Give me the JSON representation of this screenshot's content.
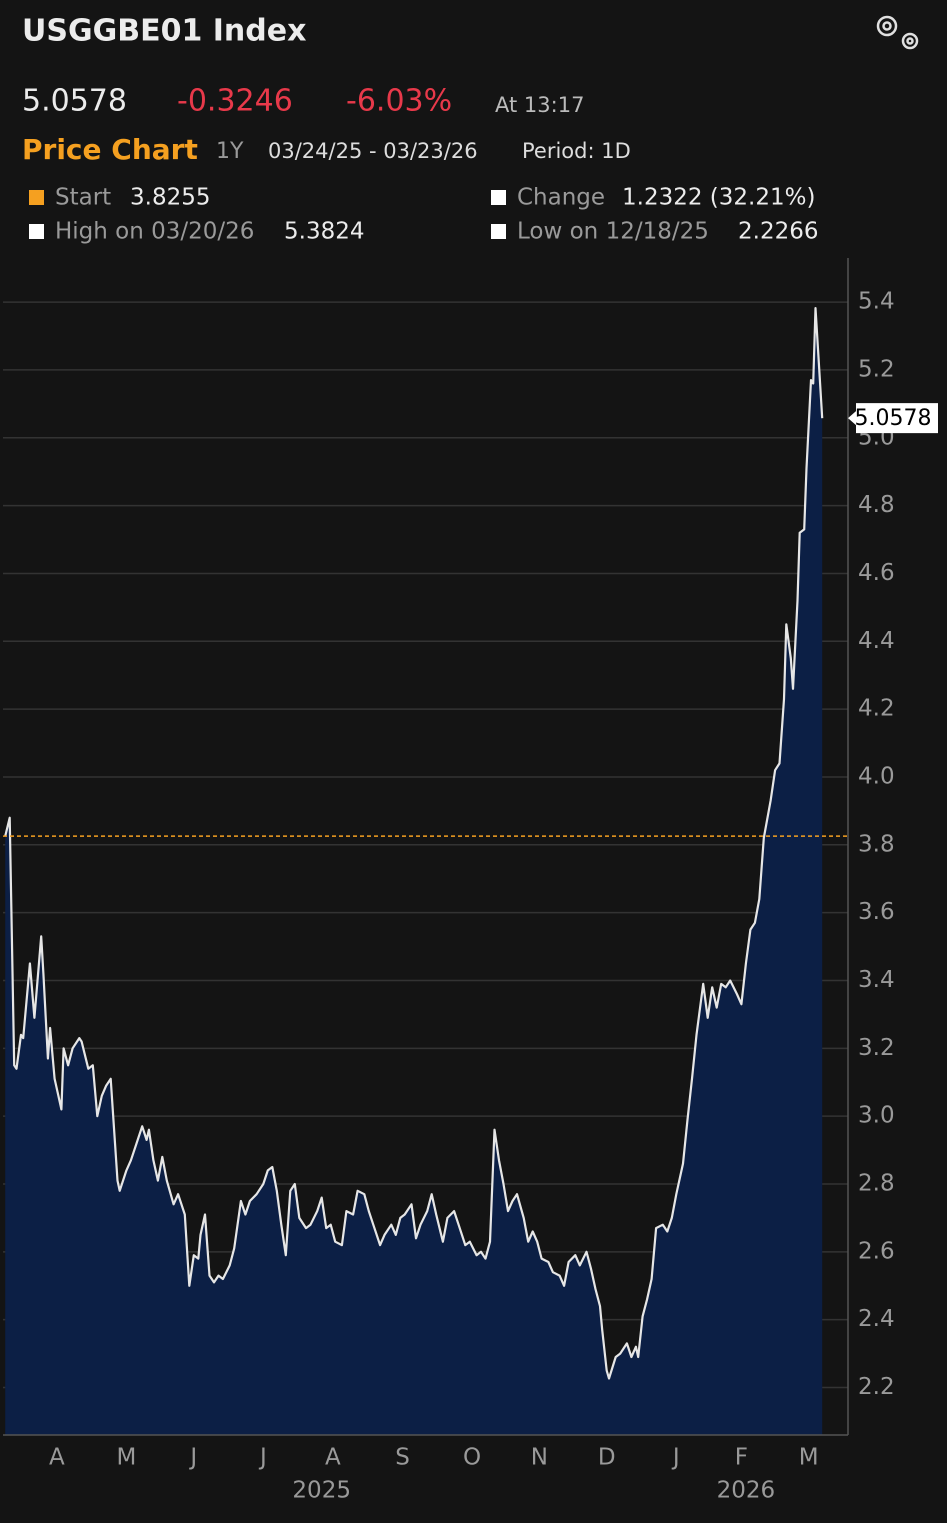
{
  "header": {
    "title": "USGGBE01 Index",
    "change": "-0.3246",
    "change_pct": "-6.03%",
    "time": "At 13:17",
    "chart_label": "Price Chart",
    "range": "1Y",
    "dates": "03/24/25 - 03/23/26",
    "period": "Period: 1D"
  },
  "stats": {
    "start_label": "Start",
    "change_label": "Change",
    "change_value": "1.2322 (32.21%)",
    "high_label": "High on 03/20/26",
    "low_label": "Low on 12/18/25"
  },
  "chart_data": {
    "type": "area",
    "x": [
      0,
      2,
      4,
      5,
      7,
      8,
      11,
      13,
      16,
      17,
      19,
      20,
      22,
      25,
      26,
      28,
      30,
      33,
      34,
      37,
      39,
      41,
      43,
      45,
      47,
      50,
      51,
      54,
      56,
      59,
      61,
      63,
      64,
      66,
      68,
      70,
      72,
      75,
      77,
      80,
      82,
      84,
      86,
      87,
      89,
      91,
      93,
      95,
      97,
      100,
      102,
      105,
      107,
      109,
      112,
      115,
      117,
      119,
      121,
      123,
      125,
      127,
      129,
      131,
      134,
      136,
      139,
      141,
      143,
      145,
      147,
      150,
      152,
      155,
      157,
      160,
      162,
      164,
      167,
      169,
      172,
      174,
      176,
      178,
      181,
      183,
      185,
      188,
      190,
      192,
      195,
      197,
      200,
      202,
      205,
      207,
      210,
      212,
      214,
      216,
      218,
      220,
      222,
      224,
      226,
      228,
      231,
      233,
      235,
      237,
      239,
      242,
      244,
      247,
      249,
      251,
      254,
      256,
      259,
      261,
      263,
      265,
      266,
      268,
      269,
      272,
      274,
      277,
      279,
      281,
      282,
      284,
      286,
      288,
      290,
      293,
      295,
      297,
      299,
      302,
      304,
      306,
      308,
      311,
      313,
      315,
      317,
      319,
      321,
      323,
      326,
      328,
      330,
      332,
      334,
      336,
      338,
      341,
      343,
      345,
      347,
      348,
      350,
      351,
      353,
      354,
      356,
      357,
      359,
      360,
      361,
      364
    ],
    "values": [
      3.8255,
      3.88,
      3.15,
      3.14,
      3.24,
      3.23,
      3.45,
      3.29,
      3.53,
      3.42,
      3.17,
      3.26,
      3.11,
      3.02,
      3.2,
      3.15,
      3.2,
      3.23,
      3.22,
      3.14,
      3.15,
      3.0,
      3.06,
      3.09,
      3.11,
      2.81,
      2.78,
      2.84,
      2.87,
      2.93,
      2.97,
      2.93,
      2.96,
      2.87,
      2.81,
      2.88,
      2.81,
      2.74,
      2.77,
      2.71,
      2.5,
      2.59,
      2.58,
      2.65,
      2.71,
      2.53,
      2.51,
      2.53,
      2.52,
      2.56,
      2.61,
      2.75,
      2.71,
      2.75,
      2.77,
      2.8,
      2.84,
      2.85,
      2.78,
      2.68,
      2.59,
      2.78,
      2.8,
      2.7,
      2.67,
      2.68,
      2.72,
      2.76,
      2.67,
      2.68,
      2.63,
      2.62,
      2.72,
      2.71,
      2.78,
      2.77,
      2.72,
      2.68,
      2.62,
      2.65,
      2.68,
      2.65,
      2.7,
      2.71,
      2.74,
      2.64,
      2.68,
      2.72,
      2.77,
      2.71,
      2.63,
      2.7,
      2.72,
      2.68,
      2.62,
      2.63,
      2.59,
      2.6,
      2.58,
      2.63,
      2.96,
      2.87,
      2.8,
      2.72,
      2.75,
      2.77,
      2.7,
      2.63,
      2.66,
      2.63,
      2.58,
      2.57,
      2.54,
      2.53,
      2.5,
      2.57,
      2.59,
      2.56,
      2.6,
      2.55,
      2.49,
      2.44,
      2.37,
      2.25,
      2.2266,
      2.29,
      2.3,
      2.33,
      2.29,
      2.32,
      2.29,
      2.41,
      2.46,
      2.52,
      2.67,
      2.68,
      2.66,
      2.7,
      2.77,
      2.86,
      2.99,
      3.11,
      3.24,
      3.39,
      3.29,
      3.38,
      3.32,
      3.39,
      3.38,
      3.4,
      3.36,
      3.33,
      3.45,
      3.55,
      3.57,
      3.64,
      3.82,
      3.93,
      4.02,
      4.04,
      4.23,
      4.45,
      4.35,
      4.26,
      4.52,
      4.72,
      4.73,
      4.91,
      5.17,
      5.16,
      5.3824,
      5.0578
    ],
    "xlim": [
      -1,
      375.5
    ],
    "xticks": [
      {
        "value": 23,
        "label": "A"
      },
      {
        "value": 54,
        "label": "M"
      },
      {
        "value": 84,
        "label": "J"
      },
      {
        "value": 115,
        "label": "J"
      },
      {
        "value": 146,
        "label": "A"
      },
      {
        "value": 177,
        "label": "S"
      },
      {
        "value": 208,
        "label": "O"
      },
      {
        "value": 238,
        "label": "N"
      },
      {
        "value": 268,
        "label": "D"
      },
      {
        "value": 299,
        "label": "J"
      },
      {
        "value": 328,
        "label": "F"
      },
      {
        "value": 358,
        "label": "M"
      }
    ],
    "year_ticks": [
      {
        "value": 141,
        "label": "2025"
      },
      {
        "value": 330,
        "label": "2026"
      }
    ],
    "ylim": [
      2.06,
      5.53
    ],
    "yticks": [
      2.2,
      2.4,
      2.6,
      2.8,
      {
        "value": 3,
        "label": "3.0"
      },
      3.2,
      3.4,
      3.6,
      3.8,
      {
        "value": 4,
        "label": "4.0"
      },
      4.2,
      4.4,
      4.6,
      4.8,
      {
        "value": 5,
        "label": "5.0"
      },
      5.2,
      5.4
    ],
    "grid": true,
    "line_color": "#e6e6e6",
    "fill_color": "#0c1f45",
    "start_color": "#f5a020"
  }
}
